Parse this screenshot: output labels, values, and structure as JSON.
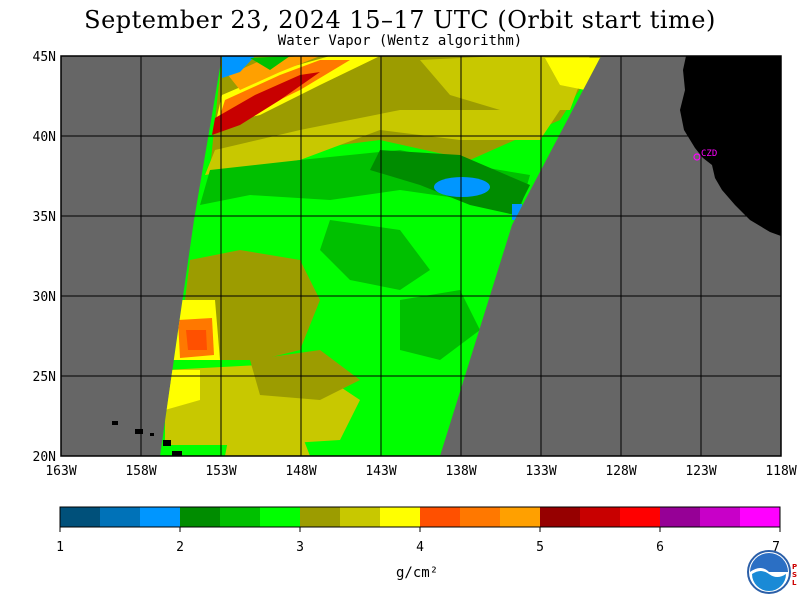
{
  "title": "September 23, 2024  15–17 UTC  (Orbit start time)",
  "subtitle": "Water Vapor (Wentz algorithm)",
  "map": {
    "lon_range": [
      -163,
      -118
    ],
    "lat_range": [
      20,
      45
    ],
    "lat_labels": [
      "45N",
      "40N",
      "35N",
      "30N",
      "25N",
      "20N"
    ],
    "lon_labels": [
      "163W",
      "158W",
      "153W",
      "148W",
      "143W",
      "138W",
      "133W",
      "128W",
      "123W",
      "118W"
    ],
    "station_label": "CZD",
    "no_data_color": "#666666",
    "land_color": "#000000"
  },
  "colorbar": {
    "colors": [
      "#00507a",
      "#0072b8",
      "#0096ff",
      "#008c00",
      "#00c000",
      "#00ff00",
      "#9c9c00",
      "#c8c800",
      "#ffff00",
      "#ff5000",
      "#ff7800",
      "#ffa000",
      "#960000",
      "#c80000",
      "#ff0000",
      "#960096",
      "#c800c8",
      "#ff00ff"
    ],
    "tick_labels": [
      "1",
      "2",
      "3",
      "4",
      "5",
      "6",
      "7"
    ],
    "unit": "g/cm²"
  },
  "logo": {
    "name": "NOAA",
    "side_text": "PSL"
  }
}
